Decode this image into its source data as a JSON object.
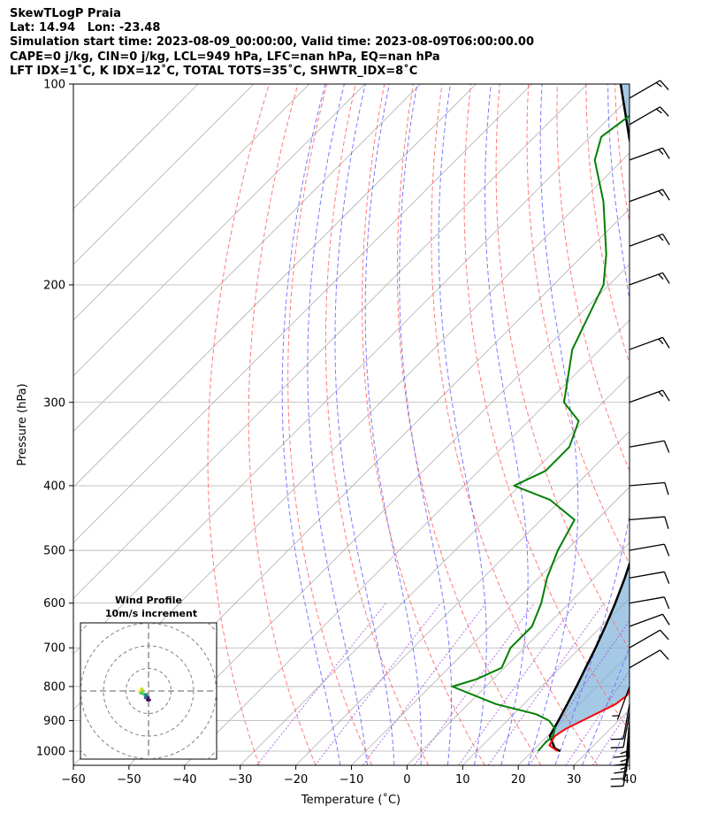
{
  "header": {
    "line1": "SkewTLogP Praia",
    "line2": "Lat: 14.94   Lon: -23.48",
    "line3": "Simulation start time: 2023-08-09_00:00:00, Valid time: 2023-08-09T06:00:00.00",
    "line4": "CAPE=0 j/kg, CIN=0 j/kg, LCL=949 hPa, LFC=nan hPa, EQ=nan hPa",
    "line5": "LFT IDX=1˚C, K IDX=12˚C, TOTAL TOTS=35˚C, SHWTR_IDX=8˚C"
  },
  "colors": {
    "temperature": "#ff0000",
    "dewpoint": "#008000",
    "parcel": "#000000",
    "cape_fill": "#7fb2d8",
    "dry_adiabat": "#ff6b6b",
    "moist_adiabat": "#6b6bff",
    "mixing_ratio": "#9b4ddb",
    "isotherm": "#b0b0b0"
  },
  "chart_data": {
    "type": "line",
    "title": "",
    "xlabel": "Temperature (˚C)",
    "ylabel": "Pressure (hPa)",
    "xlim": [
      -60,
      40
    ],
    "ylim": [
      1050,
      100
    ],
    "yscale": "log",
    "skew": true,
    "grid": true,
    "x_ticks": [
      "−60",
      "−50",
      "−40",
      "−30",
      "−20",
      "−10",
      "0",
      "10",
      "20",
      "30",
      "40"
    ],
    "y_ticks": [
      "100",
      "200",
      "300",
      "400",
      "500",
      "600",
      "700",
      "800",
      "900",
      "1000"
    ],
    "series": [
      {
        "key": "temperature",
        "points": [
          [
            1000,
            24.5
          ],
          [
            980,
            22.0
          ],
          [
            950,
            21.3
          ],
          [
            925,
            22.0
          ],
          [
            900,
            23.5
          ],
          [
            850,
            26.5
          ],
          [
            825,
            27.0
          ],
          [
            800,
            26.2
          ],
          [
            750,
            23.0
          ],
          [
            700,
            19.2
          ],
          [
            650,
            16.0
          ],
          [
            600,
            12.4
          ],
          [
            550,
            9.5
          ],
          [
            500,
            5.8
          ],
          [
            450,
            1.8
          ],
          [
            400,
            -3.0
          ],
          [
            350,
            -8.6
          ],
          [
            300,
            -15.7
          ],
          [
            250,
            -24.5
          ],
          [
            200,
            -35.0
          ],
          [
            170,
            -43.0
          ],
          [
            150,
            -49.5
          ],
          [
            130,
            -58.0
          ],
          [
            120,
            -62.5
          ],
          [
            115,
            -63.5
          ],
          [
            110,
            -64.0
          ],
          [
            100,
            -66.5
          ]
        ]
      },
      {
        "key": "dewpoint",
        "points": [
          [
            1000,
            21.0
          ],
          [
            970,
            20.8
          ],
          [
            950,
            21.0
          ],
          [
            925,
            20.0
          ],
          [
            900,
            17.5
          ],
          [
            880,
            14.0
          ],
          [
            850,
            5.0
          ],
          [
            800,
            -6.0
          ],
          [
            780,
            -3.0
          ],
          [
            750,
            -0.5
          ],
          [
            700,
            -2.5
          ],
          [
            650,
            -2.5
          ],
          [
            600,
            -5.0
          ],
          [
            550,
            -8.5
          ],
          [
            500,
            -11.5
          ],
          [
            450,
            -14.0
          ],
          [
            420,
            -22.0
          ],
          [
            400,
            -31.0
          ],
          [
            380,
            -28.0
          ],
          [
            350,
            -28.0
          ],
          [
            320,
            -31.0
          ],
          [
            300,
            -37.0
          ],
          [
            250,
            -45.0
          ],
          [
            200,
            -51.0
          ],
          [
            180,
            -56.0
          ],
          [
            150,
            -66.0
          ],
          [
            130,
            -75.0
          ],
          [
            120,
            -78.0
          ],
          [
            110,
            -76.5
          ],
          [
            100,
            -76.0
          ]
        ]
      },
      {
        "key": "parcel",
        "points": [
          [
            1000,
            25.0
          ],
          [
            990,
            23.5
          ],
          [
            949,
            20.4
          ],
          [
            900,
            19.2
          ],
          [
            850,
            17.8
          ],
          [
            800,
            16.3
          ],
          [
            750,
            14.6
          ],
          [
            700,
            12.8
          ],
          [
            650,
            10.7
          ],
          [
            600,
            8.3
          ],
          [
            550,
            5.5
          ],
          [
            500,
            2.2
          ],
          [
            450,
            -1.7
          ],
          [
            400,
            -6.3
          ],
          [
            350,
            -11.9
          ],
          [
            300,
            -19.0
          ],
          [
            250,
            -28.3
          ],
          [
            200,
            -41.0
          ],
          [
            150,
            -59.0
          ],
          [
            120,
            -73.0
          ],
          [
            100,
            -84.0
          ]
        ]
      }
    ],
    "wind_barbs": [
      {
        "p": 1000,
        "spd_kt": 10,
        "dir": 190
      },
      {
        "p": 975,
        "spd_kt": 12,
        "dir": 190
      },
      {
        "p": 950,
        "spd_kt": 15,
        "dir": 185
      },
      {
        "p": 925,
        "spd_kt": 15,
        "dir": 185
      },
      {
        "p": 900,
        "spd_kt": 15,
        "dir": 185
      },
      {
        "p": 875,
        "spd_kt": 12,
        "dir": 190
      },
      {
        "p": 850,
        "spd_kt": 10,
        "dir": 190
      },
      {
        "p": 800,
        "spd_kt": 5,
        "dir": 200
      },
      {
        "p": 750,
        "spd_kt": 10,
        "dir": 60
      },
      {
        "p": 700,
        "spd_kt": 10,
        "dir": 60
      },
      {
        "p": 650,
        "spd_kt": 10,
        "dir": 70
      },
      {
        "p": 600,
        "spd_kt": 10,
        "dir": 80
      },
      {
        "p": 550,
        "spd_kt": 10,
        "dir": 80
      },
      {
        "p": 500,
        "spd_kt": 10,
        "dir": 80
      },
      {
        "p": 450,
        "spd_kt": 10,
        "dir": 85
      },
      {
        "p": 400,
        "spd_kt": 10,
        "dir": 85
      },
      {
        "p": 350,
        "spd_kt": 10,
        "dir": 80
      },
      {
        "p": 300,
        "spd_kt": 15,
        "dir": 70
      },
      {
        "p": 250,
        "spd_kt": 15,
        "dir": 70
      },
      {
        "p": 200,
        "spd_kt": 15,
        "dir": 70
      },
      {
        "p": 175,
        "spd_kt": 15,
        "dir": 70
      },
      {
        "p": 150,
        "spd_kt": 15,
        "dir": 70
      },
      {
        "p": 130,
        "spd_kt": 15,
        "dir": 70
      },
      {
        "p": 115,
        "spd_kt": 15,
        "dir": 60
      },
      {
        "p": 105,
        "spd_kt": 15,
        "dir": 60
      }
    ],
    "hodograph": {
      "title": "Wind Profile",
      "subtitle": "10m/s increment",
      "rings_ms": [
        10,
        20,
        30,
        40
      ],
      "points_uv": [
        [
          -4.0,
          -0.5
        ],
        [
          -3.0,
          1.0
        ],
        [
          -2.5,
          0.0
        ],
        [
          -3.5,
          -1.0
        ],
        [
          -1.5,
          -1.5
        ],
        [
          -1.5,
          -2.0
        ],
        [
          -1.0,
          -1.5
        ],
        [
          -1.5,
          -3.0
        ],
        [
          -0.5,
          -2.5
        ],
        [
          -0.5,
          -3.5
        ],
        [
          0.0,
          -3.0
        ],
        [
          -0.5,
          -4.0
        ],
        [
          0.5,
          -4.0
        ]
      ]
    }
  }
}
